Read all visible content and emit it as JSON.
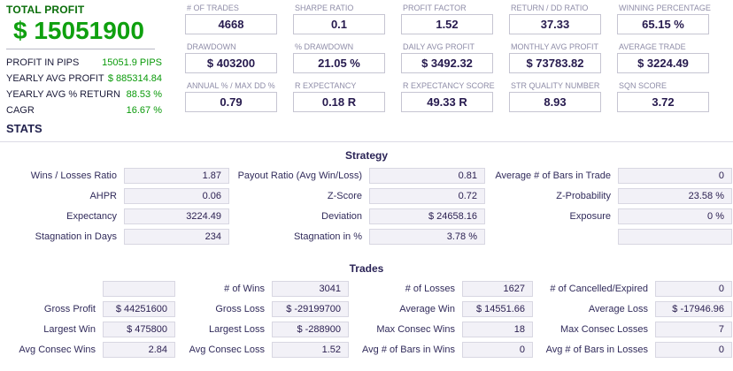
{
  "colors": {
    "profit_green": "#0fa00f",
    "profit_green_dark": "#0a6e0a",
    "value_dark": "#261a4e",
    "label_gray": "#8f8da8",
    "stats_box_bg": "#f2f1f7"
  },
  "summary": {
    "title": "TOTAL PROFIT",
    "total_profit": "$ 15051900",
    "rows": [
      {
        "label": "PROFIT IN PIPS",
        "value": "15051.9 PIPS"
      },
      {
        "label": "YEARLY AVG PROFIT",
        "value": "$ 885314.84"
      },
      {
        "label": "YEARLY AVG % RETURN",
        "value": "88.53 %"
      },
      {
        "label": "CAGR",
        "value": "16.67 %"
      }
    ]
  },
  "metrics": {
    "rows": [
      [
        {
          "label": "# OF TRADES",
          "value": "4668"
        },
        {
          "label": "SHARPE RATIO",
          "value": "0.1"
        },
        {
          "label": "PROFIT FACTOR",
          "value": "1.52"
        },
        {
          "label": "RETURN / DD RATIO",
          "value": "37.33"
        },
        {
          "label": "WINNING PERCENTAGE",
          "value": "65.15 %"
        }
      ],
      [
        {
          "label": "DRAWDOWN",
          "value": "$ 403200"
        },
        {
          "label": "% DRAWDOWN",
          "value": "21.05 %"
        },
        {
          "label": "DAILY AVG PROFIT",
          "value": "$ 3492.32"
        },
        {
          "label": "MONTHLY AVG PROFIT",
          "value": "$ 73783.82"
        },
        {
          "label": "AVERAGE TRADE",
          "value": "$ 3224.49"
        }
      ],
      [
        {
          "label": "ANNUAL % / MAX DD %",
          "value": "0.79"
        },
        {
          "label": "R EXPECTANCY",
          "value": "0.18 R"
        },
        {
          "label": "R EXPECTANCY SCORE",
          "value": "49.33 R"
        },
        {
          "label": "STR QUALITY NUMBER",
          "value": "8.93"
        },
        {
          "label": "SQN SCORE",
          "value": "3.72"
        }
      ]
    ]
  },
  "stats": {
    "header": "STATS",
    "strategy": {
      "title": "Strategy",
      "rows": [
        [
          {
            "label": "Wins / Losses Ratio",
            "value": "1.87"
          },
          {
            "label": "Payout Ratio (Avg Win/Loss)",
            "value": "0.81"
          },
          {
            "label": "Average # of Bars in Trade",
            "value": "0"
          }
        ],
        [
          {
            "label": "AHPR",
            "value": "0.06"
          },
          {
            "label": "Z-Score",
            "value": "0.72"
          },
          {
            "label": "Z-Probability",
            "value": "23.58 %"
          }
        ],
        [
          {
            "label": "Expectancy",
            "value": "3224.49"
          },
          {
            "label": "Deviation",
            "value": "$ 24658.16"
          },
          {
            "label": "Exposure",
            "value": "0 %"
          }
        ],
        [
          {
            "label": "Stagnation in Days",
            "value": "234"
          },
          {
            "label": "Stagnation in %",
            "value": "3.78 %"
          },
          {
            "label": "",
            "value": ""
          }
        ]
      ]
    },
    "trades": {
      "title": "Trades",
      "rows": [
        [
          {
            "label": "",
            "value": ""
          },
          {
            "label": "# of Wins",
            "value": "3041"
          },
          {
            "label": "# of Losses",
            "value": "1627"
          },
          {
            "label": "# of Cancelled/Expired",
            "value": "0"
          }
        ],
        [
          {
            "label": "Gross Profit",
            "value": "$ 44251600"
          },
          {
            "label": "Gross Loss",
            "value": "$ -29199700"
          },
          {
            "label": "Average Win",
            "value": "$ 14551.66"
          },
          {
            "label": "Average Loss",
            "value": "$ -17946.96"
          }
        ],
        [
          {
            "label": "Largest Win",
            "value": "$ 475800"
          },
          {
            "label": "Largest Loss",
            "value": "$ -288900"
          },
          {
            "label": "Max Consec Wins",
            "value": "18"
          },
          {
            "label": "Max Consec Losses",
            "value": "7"
          }
        ],
        [
          {
            "label": "Avg Consec Wins",
            "value": "2.84"
          },
          {
            "label": "Avg Consec Loss",
            "value": "1.52"
          },
          {
            "label": "Avg # of Bars in Wins",
            "value": "0"
          },
          {
            "label": "Avg # of Bars in Losses",
            "value": "0"
          }
        ]
      ]
    }
  }
}
